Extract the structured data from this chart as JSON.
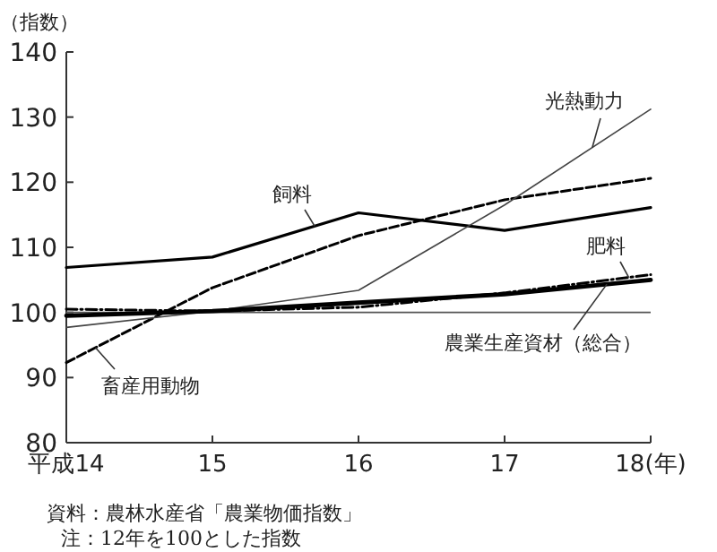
{
  "chart_data": {
    "type": "line",
    "ylabel": "（指数）",
    "x": [
      14,
      15,
      16,
      17,
      18
    ],
    "xlim": [
      14,
      18
    ],
    "xticks": [
      {
        "value": 14,
        "label": "平成14"
      },
      15,
      16,
      17,
      {
        "value": 18,
        "label": "18(年)"
      }
    ],
    "ylim": [
      80,
      140
    ],
    "yticks": [
      80,
      90,
      100,
      110,
      120,
      130,
      140
    ],
    "series": [
      {
        "name": "飼料",
        "color": "#000000",
        "line_style": "solid",
        "values": [
          106.9,
          108.5,
          115.3,
          112.6,
          116.1
        ]
      },
      {
        "name": "畜産用動物",
        "color": "#000000",
        "line_style": "dashed",
        "values": [
          92.3,
          103.8,
          111.8,
          117.3,
          120.6
        ]
      },
      {
        "name": "光熱動力",
        "color": "#444444",
        "line_style": "solid",
        "values": [
          97.7,
          100.2,
          103.4,
          116.5,
          131.2
        ]
      },
      {
        "name": "肥料",
        "color": "#000000",
        "line_style": "dashdot",
        "values": [
          100.5,
          100.2,
          100.8,
          103,
          105.8
        ]
      },
      {
        "name": "農業生産資材（総合）",
        "color": "#000000",
        "line_style": "solid",
        "values": [
          99.5,
          100.2,
          101.5,
          102.8,
          105
        ]
      }
    ],
    "ref_lines": [
      {
        "axis": "y",
        "value": 100,
        "color": "#555555"
      }
    ],
    "grid": false,
    "legend": false,
    "marker": "none",
    "annotations": [
      "資料：農林水産省「農業物価指数」",
      "注：12年を100とした指数"
    ]
  }
}
